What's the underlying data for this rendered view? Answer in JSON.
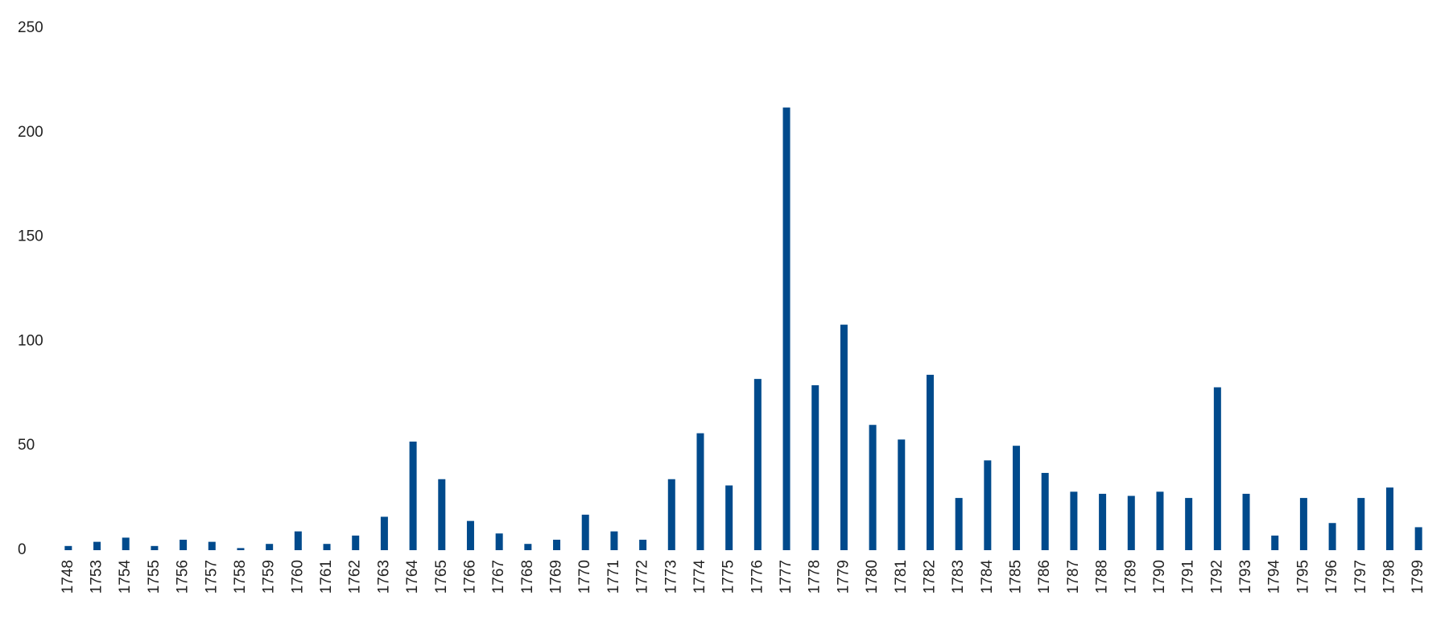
{
  "chart_data": {
    "type": "bar",
    "categories": [
      "1748",
      "1753",
      "1754",
      "1755",
      "1756",
      "1757",
      "1758",
      "1759",
      "1760",
      "1761",
      "1762",
      "1763",
      "1764",
      "1765",
      "1766",
      "1767",
      "1768",
      "1769",
      "1770",
      "1771",
      "1772",
      "1773",
      "1774",
      "1775",
      "1776",
      "1777",
      "1778",
      "1779",
      "1780",
      "1781",
      "1782",
      "1783",
      "1784",
      "1785",
      "1786",
      "1787",
      "1788",
      "1789",
      "1790",
      "1791",
      "1792",
      "1793",
      "1794",
      "1795",
      "1796",
      "1797",
      "1798",
      "1799"
    ],
    "values": [
      2,
      4,
      6,
      2,
      5,
      4,
      1,
      3,
      9,
      3,
      7,
      16,
      52,
      34,
      14,
      8,
      3,
      5,
      17,
      9,
      5,
      34,
      56,
      31,
      82,
      212,
      79,
      108,
      60,
      53,
      84,
      25,
      43,
      50,
      37,
      28,
      27,
      26,
      28,
      25,
      78,
      27,
      7,
      25,
      13,
      25,
      30,
      11
    ],
    "color": "#004a8c",
    "ylim": [
      0,
      250
    ],
    "yticks": [
      0,
      50,
      100,
      150,
      200,
      250
    ],
    "grid": false
  }
}
